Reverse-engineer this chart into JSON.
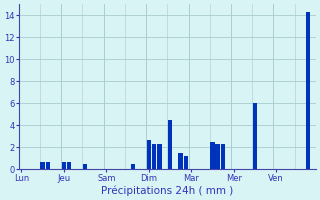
{
  "xlabel": "Précipitations 24h ( mm )",
  "background_color": "#d8f4f4",
  "bar_color_dark": "#0033bb",
  "bar_color_light": "#3399ff",
  "ylim": [
    0,
    15
  ],
  "yticks": [
    0,
    2,
    4,
    6,
    8,
    10,
    12,
    14
  ],
  "day_labels": [
    "Lun",
    "Jeu",
    "Sam",
    "Dim",
    "Mar",
    "Mer",
    "Ven"
  ],
  "n_bars": 56,
  "bars": [
    0.0,
    0.0,
    0.0,
    0.0,
    0.7,
    0.7,
    0.0,
    0.0,
    0.7,
    0.7,
    0.0,
    0.0,
    0.5,
    0.0,
    0.0,
    0.0,
    0.0,
    0.0,
    0.0,
    0.0,
    0.0,
    0.5,
    0.0,
    0.0,
    2.7,
    2.3,
    2.3,
    0.0,
    4.5,
    0.0,
    1.5,
    1.2,
    0.0,
    0.0,
    0.0,
    0.0,
    2.5,
    2.3,
    2.3,
    0.0,
    0.0,
    0.0,
    0.0,
    0.0,
    6.0,
    0.0,
    0.0,
    0.0,
    0.0,
    0.0,
    0.0,
    0.0,
    0.0,
    0.0,
    14.3,
    0.0
  ],
  "day_tick_positions": [
    0,
    8,
    16,
    24,
    32,
    40,
    48
  ],
  "grid_color": "#aacccc",
  "tick_color": "#3333bb",
  "spine_color": "#4444aa"
}
